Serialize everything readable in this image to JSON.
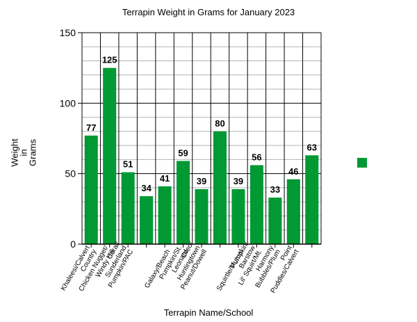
{
  "chart_data": {
    "type": "bar",
    "title": "Terrapin Weight in Grams for January 2023",
    "xlabel": "Terrapin Name/School",
    "ylabel": "Weight in Grams",
    "ylabel_lines": [
      "Weight",
      "in",
      "Grams"
    ],
    "ylim": [
      0,
      150
    ],
    "yticks": [
      0,
      50,
      100,
      150
    ],
    "minor_grid_step": 10,
    "grid": true,
    "legend_position": "right",
    "bar_color": "#009933",
    "categories": [
      "Khaleesi/Calvert Country",
      "Chicken Nugget/ Windy Hill",
      "Coral/ Sunderland",
      "Pumpkin/PAC",
      "Galaxy/Beach",
      "Pumpkin/St. Leonard",
      "Oreo/ Huntingtown",
      "Peanut/Dowell",
      "Squirtle/Mutual",
      "Pumpkin/ Barstow",
      "Lil' Squirt/Mt. Harmony",
      "Bubbles/Plum Point",
      "Puddles/Calvert"
    ],
    "category_label_lines": [
      [
        "Khaleesi/Calvert",
        "Country"
      ],
      [
        "Chicken Nugget/",
        "Windy Hill"
      ],
      [
        "Coral/",
        "Sunderland",
        "Pumpkin/PAC"
      ],
      [],
      [
        "Galaxy/Beach"
      ],
      [
        "Pumpkin/St.",
        "Leonard"
      ],
      [
        "Oreo/",
        "Huntingtown",
        "Peanut/Dowell"
      ],
      [],
      [
        "Squirtle/Mutual"
      ],
      [
        "Pumpkin/",
        "Barstow",
        "Lil' Squirt/Mt."
      ],
      [
        "Harmony",
        "Bubbles/Plum"
      ],
      [
        "Point",
        "Puddles/Calvert"
      ],
      []
    ],
    "values": [
      77,
      125,
      51,
      34,
      41,
      59,
      39,
      80,
      39,
      56,
      33,
      46,
      63
    ],
    "data_labels": [
      "77",
      "125",
      "51",
      "34",
      "41",
      "59",
      "39",
      "80",
      "39",
      "56",
      "33",
      "46",
      "63"
    ]
  }
}
